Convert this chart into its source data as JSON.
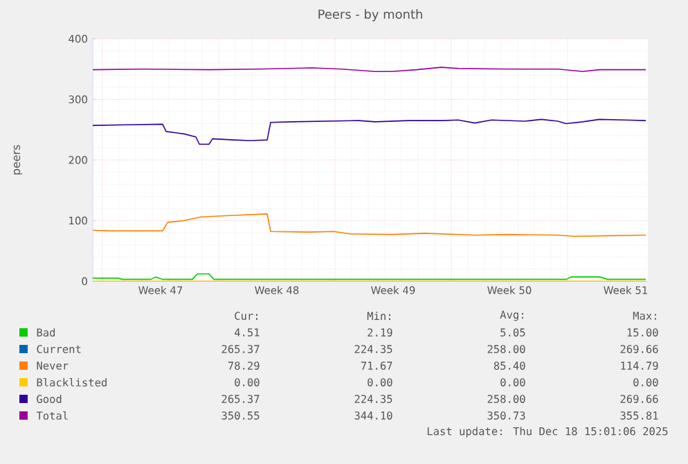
{
  "chart_data": {
    "type": "line",
    "title": "Peers - by month",
    "ylabel": "peers",
    "xlim": [
      "2025-11-16T10:00",
      "2025-12-19T20:00"
    ],
    "ylim": [
      0,
      400
    ],
    "xticks": [
      {
        "value": "2025-11-17",
        "label": null
      },
      {
        "value": "2025-11-20T12:00",
        "label": "Week 47"
      },
      {
        "value": "2025-11-24",
        "label": null
      },
      {
        "value": "2025-11-27T12:00",
        "label": "Week 48"
      },
      {
        "value": "2025-12-01",
        "label": null
      },
      {
        "value": "2025-12-04T12:00",
        "label": "Week 49"
      },
      {
        "value": "2025-12-08",
        "label": null
      },
      {
        "value": "2025-12-11T12:00",
        "label": "Week 50"
      },
      {
        "value": "2025-12-15",
        "label": null
      },
      {
        "value": "2025-12-18T12:00",
        "label": "Week 51"
      }
    ],
    "yticks": [
      0,
      100,
      200,
      300,
      400
    ],
    "grid": true,
    "legend": "bottom",
    "series": [
      {
        "name": "Bad",
        "color": "#00cc00",
        "x": [
          "2025-11-16T10:00",
          "2025-11-17T22:00",
          "2025-11-18T05:00",
          "2025-11-19T22:00",
          "2025-11-20T05:00",
          "2025-11-20T15:00",
          "2025-11-22T10:00",
          "2025-11-22T17:00",
          "2025-11-23T10:00",
          "2025-11-23T17:00",
          "2025-12-09T10:00",
          "2025-12-14T22:00",
          "2025-12-15T05:00",
          "2025-12-16T22:00",
          "2025-12-17T10:00",
          "2025-12-19T17:00"
        ],
        "values": [
          5,
          5,
          3,
          3,
          7,
          3,
          3,
          12,
          12,
          3,
          3,
          3,
          7,
          7,
          3,
          3
        ]
      },
      {
        "name": "Current",
        "color": "#0066b3"
      },
      {
        "name": "Never",
        "color": "#ff8000",
        "x": [
          "2025-11-16T10:00",
          "2025-11-17T10:00",
          "2025-11-20T15:00",
          "2025-11-20T22:00",
          "2025-11-21T22:00",
          "2025-11-22T22:00",
          "2025-11-24T10:00",
          "2025-11-26T22:00",
          "2025-11-27T03:00",
          "2025-11-29T10:00",
          "2025-11-30T22:00",
          "2025-12-01T22:00",
          "2025-12-04T10:00",
          "2025-12-06T10:00",
          "2025-12-07T10:00",
          "2025-12-09T10:00",
          "2025-12-11T10:00",
          "2025-12-14T10:00",
          "2025-12-15T10:00",
          "2025-12-17T10:00",
          "2025-12-19T17:00"
        ],
        "values": [
          84,
          83,
          83,
          97,
          100,
          106,
          108,
          111,
          82,
          81,
          82,
          78,
          77,
          79,
          78,
          76,
          77,
          76,
          74,
          75,
          76
        ]
      },
      {
        "name": "Blacklisted",
        "color": "#ffcc00",
        "x": [
          "2025-11-16T10:00",
          "2025-12-19T17:00"
        ],
        "values": [
          0,
          0
        ]
      },
      {
        "name": "Good",
        "color": "#330099",
        "x": [
          "2025-11-16T10:00",
          "2025-11-18T10:00",
          "2025-11-20T15:00",
          "2025-11-20T20:00",
          "2025-11-21T22:00",
          "2025-11-22T15:00",
          "2025-11-22T20:00",
          "2025-11-23T10:00",
          "2025-11-23T15:00",
          "2025-11-24T22:00",
          "2025-11-25T22:00",
          "2025-11-26T22:00",
          "2025-11-27T03:00",
          "2025-11-28T10:00",
          "2025-11-30T10:00",
          "2025-12-02T10:00",
          "2025-12-03T10:00",
          "2025-12-05T10:00",
          "2025-12-07T10:00",
          "2025-12-08T10:00",
          "2025-12-09T10:00",
          "2025-12-10T10:00",
          "2025-12-12T10:00",
          "2025-12-13T10:00",
          "2025-12-14T10:00",
          "2025-12-14T22:00",
          "2025-12-15T22:00",
          "2025-12-16T22:00",
          "2025-12-18T10:00",
          "2025-12-19T17:00"
        ],
        "values": [
          257,
          258,
          259,
          247,
          243,
          238,
          226,
          226,
          235,
          233,
          232,
          233,
          262,
          263,
          264,
          265,
          263,
          265,
          265,
          266,
          261,
          266,
          264,
          267,
          264,
          260,
          263,
          267,
          266,
          265
        ]
      },
      {
        "name": "Total",
        "color": "#990099",
        "x": [
          "2025-11-16T10:00",
          "2025-11-19T10:00",
          "2025-11-23T10:00",
          "2025-11-26T10:00",
          "2025-11-29T15:00",
          "2025-12-01T10:00",
          "2025-12-03T10:00",
          "2025-12-04T10:00",
          "2025-12-05T22:00",
          "2025-12-07T10:00",
          "2025-12-08T10:00",
          "2025-12-11T10:00",
          "2025-12-14T10:00",
          "2025-12-15T22:00",
          "2025-12-16T22:00",
          "2025-12-19T17:00"
        ],
        "values": [
          349,
          350,
          349,
          350,
          352,
          350,
          346,
          346,
          349,
          353,
          351,
          350,
          350,
          346,
          349,
          349
        ]
      }
    ],
    "annotations": [
      "Cur:",
      "Min:",
      "Avg:",
      "Max:",
      "4.51",
      "2.19",
      "5.05",
      "15.00",
      "265.37",
      "224.35",
      "258.00",
      "269.66",
      "78.29",
      "71.67",
      "85.40",
      "114.79",
      "0.00",
      "0.00",
      "0.00",
      "0.00",
      "265.37",
      "224.35",
      "258.00",
      "269.66",
      "350.55",
      "344.10",
      "350.73",
      "355.81",
      "Last update: Thu Dec 18 15:01:06 2025"
    ]
  }
}
